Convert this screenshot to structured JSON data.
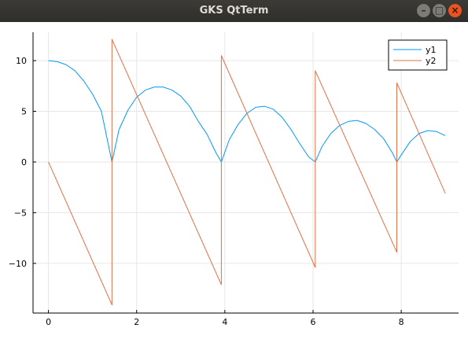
{
  "window": {
    "title": "GKS QtTerm",
    "buttons": {
      "minimize": "–",
      "maximize": "□",
      "close": "×"
    }
  },
  "chart_data": {
    "type": "line",
    "title": "",
    "xlabel": "",
    "ylabel": "",
    "xlim": [
      -0.35,
      9.3
    ],
    "ylim": [
      -14.9,
      12.8
    ],
    "xticks": [
      0,
      2,
      4,
      6,
      8
    ],
    "yticks": [
      -10,
      -5,
      0,
      5,
      10
    ],
    "xtick_labels": [
      "0",
      "2",
      "4",
      "6",
      "8"
    ],
    "ytick_labels": [
      "−10",
      "−5",
      "0",
      "5",
      "10"
    ],
    "grid": true,
    "legend": "top-right",
    "series": [
      {
        "name": "y1",
        "color": "#009af9",
        "x": [
          0,
          0.2,
          0.4,
          0.6,
          0.8,
          1.0,
          1.2,
          1.44,
          1.6,
          1.8,
          2.0,
          2.2,
          2.4,
          2.6,
          2.8,
          3.0,
          3.2,
          3.4,
          3.6,
          3.8,
          3.92,
          4.1,
          4.3,
          4.5,
          4.7,
          4.9,
          5.1,
          5.3,
          5.5,
          5.7,
          5.9,
          6.05,
          6.2,
          6.4,
          6.6,
          6.8,
          7.0,
          7.2,
          7.4,
          7.6,
          7.8,
          7.9,
          8.0,
          8.2,
          8.4,
          8.6,
          8.8,
          9.0
        ],
        "y": [
          10.0,
          9.9,
          9.6,
          9.0,
          8.0,
          6.7,
          5.0,
          0.0,
          3.2,
          5.1,
          6.4,
          7.1,
          7.4,
          7.4,
          7.1,
          6.5,
          5.5,
          4.0,
          2.7,
          0.9,
          0.0,
          2.2,
          3.7,
          4.8,
          5.4,
          5.5,
          5.2,
          4.4,
          3.2,
          1.8,
          0.5,
          0.0,
          1.5,
          2.8,
          3.6,
          4.0,
          4.1,
          3.8,
          3.2,
          2.3,
          0.9,
          0.0,
          0.7,
          2.0,
          2.8,
          3.1,
          3.0,
          2.6
        ]
      },
      {
        "name": "y2",
        "color": "#e26f46",
        "x": [
          0,
          1.44,
          1.44,
          3.92,
          3.92,
          6.05,
          6.05,
          7.9,
          7.9,
          9.0
        ],
        "y": [
          0,
          -14.1,
          12.1,
          -12.1,
          10.5,
          -10.4,
          9.0,
          -8.9,
          7.8,
          -3.1
        ]
      }
    ]
  }
}
